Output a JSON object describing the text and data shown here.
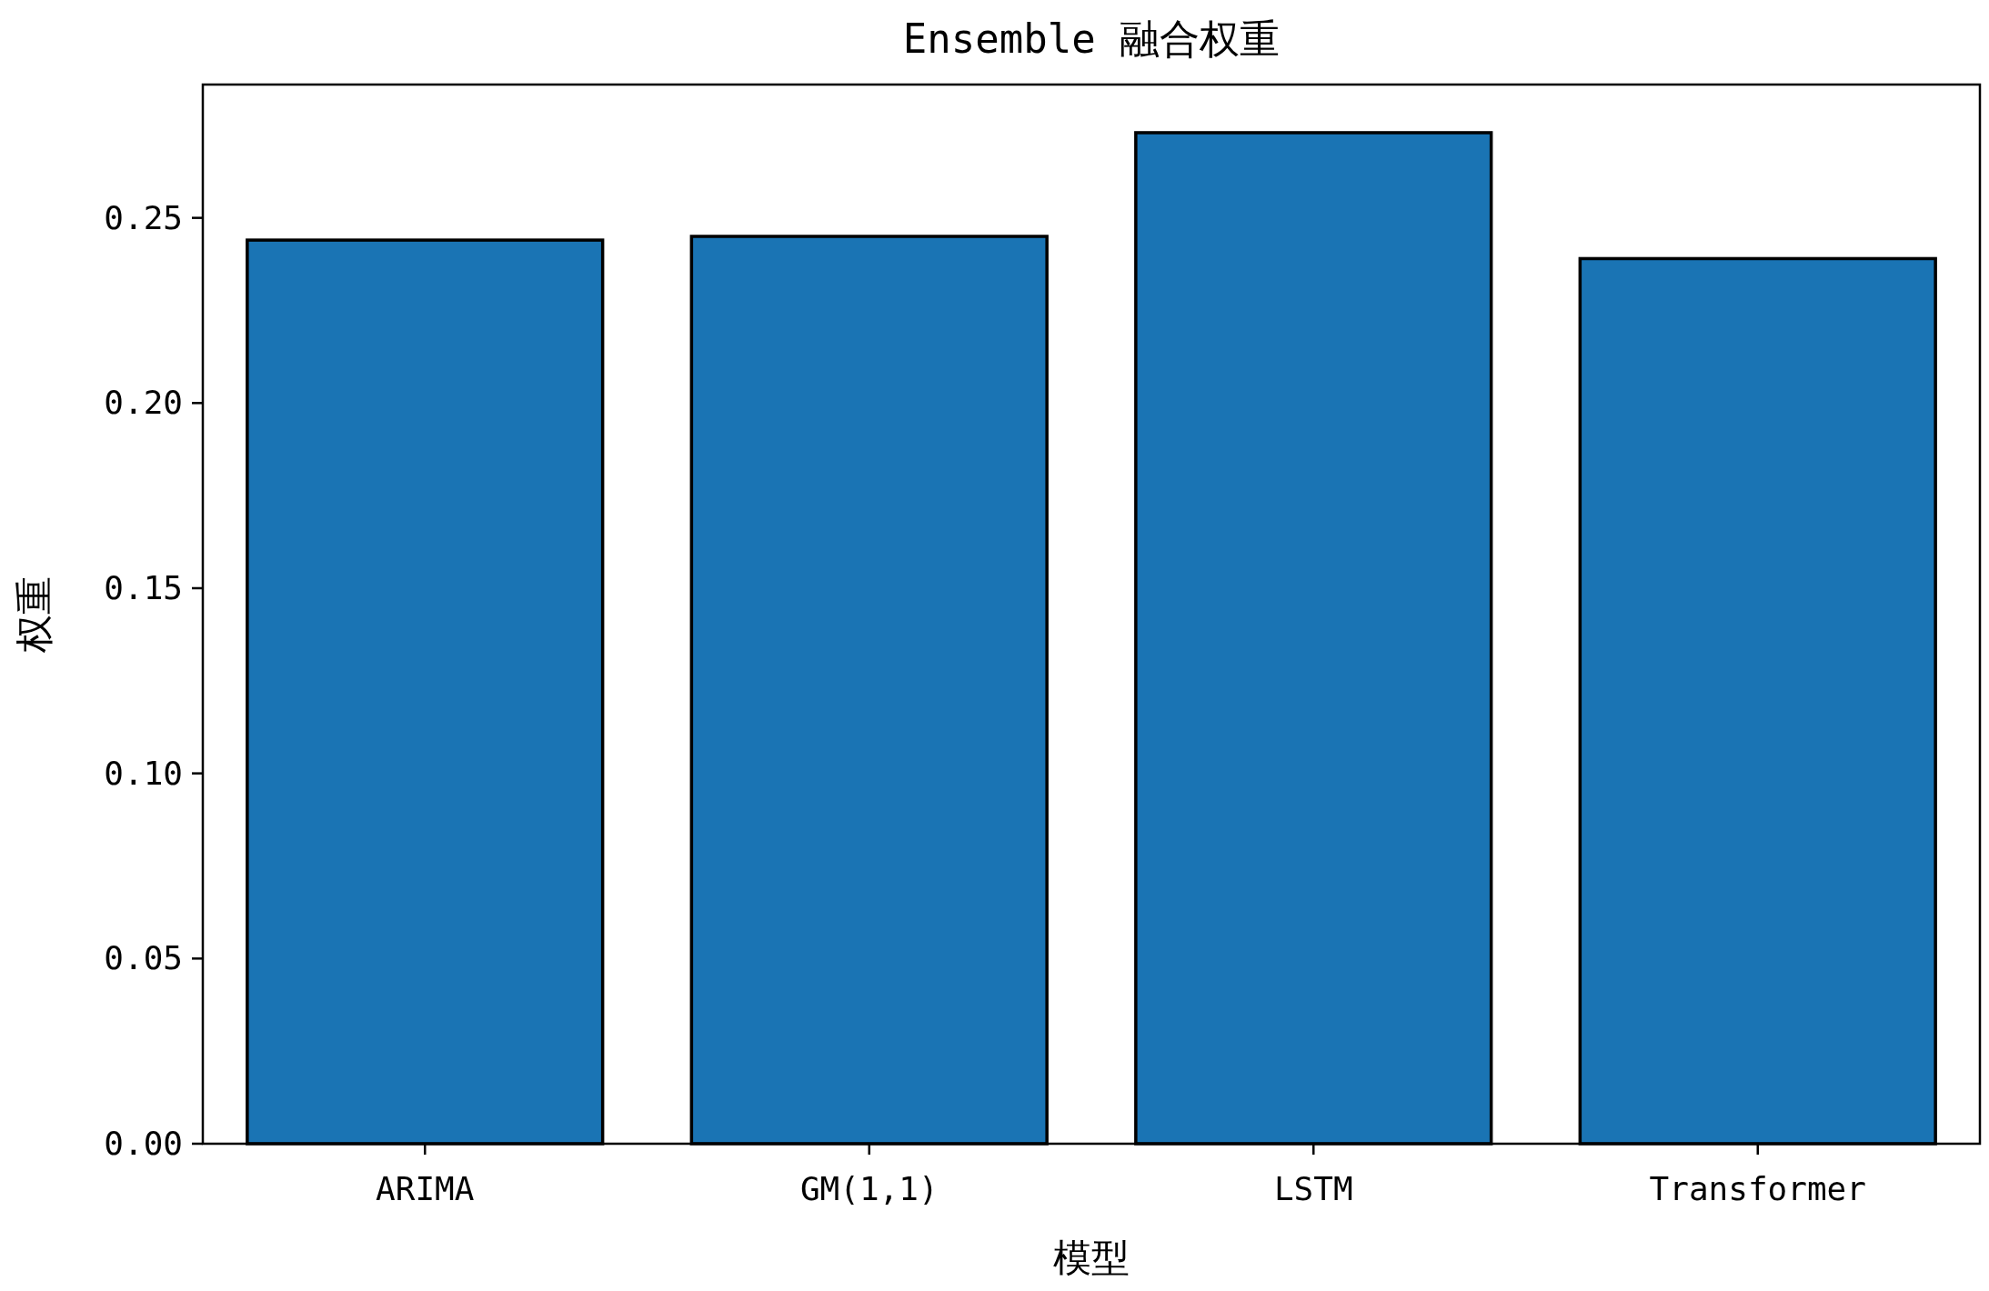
{
  "chart_data": {
    "type": "bar",
    "title": "Ensemble 融合权重",
    "xlabel": "模型",
    "ylabel": "权重",
    "categories": [
      "ARIMA",
      "GM(1,1)",
      "LSTM",
      "Transformer"
    ],
    "values": [
      0.244,
      0.245,
      0.273,
      0.239
    ],
    "color": "#1a74b4",
    "ylim": [
      0,
      0.286
    ],
    "yticks": [
      {
        "value": 0,
        "label": "0.00"
      },
      {
        "value": 0.05,
        "label": "0.05"
      },
      {
        "value": 0.1,
        "label": "0.10"
      },
      {
        "value": 0.15,
        "label": "0.15"
      },
      {
        "value": 0.2,
        "label": "0.20"
      },
      {
        "value": 0.25,
        "label": "0.25"
      }
    ]
  }
}
